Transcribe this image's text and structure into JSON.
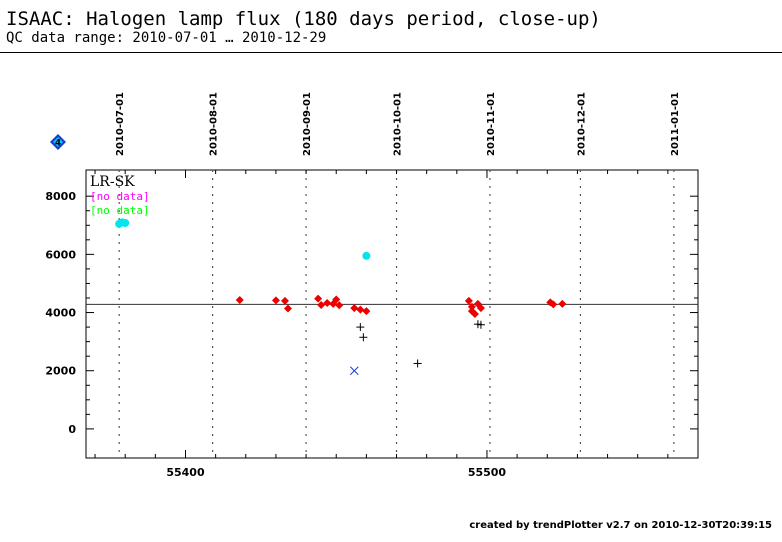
{
  "header": {
    "title": "ISAAC: Halogen lamp flux (180 days period, close-up)",
    "subtitle": "QC data range: 2010-07-01 … 2010-12-29"
  },
  "footer": {
    "credit": "created by trendPlotter v2.7 on 2010-12-30T20:39:15"
  },
  "badge": {
    "label": "4",
    "color": "#1a3ccc",
    "fill": "#00c8ff"
  },
  "chart_data": {
    "type": "scatter",
    "title": "ISAAC: Halogen lamp flux (180 days period, close-up)",
    "subtitle": "QC data range: 2010-07-01 … 2010-12-29",
    "xlabel": "",
    "ylabel": "",
    "xlim": [
      55367,
      55570
    ],
    "ylim": [
      -1000,
      8900
    ],
    "x_ticks_major": [
      55400,
      55500
    ],
    "y_ticks_major": [
      0,
      2000,
      4000,
      6000,
      8000
    ],
    "top_axis_dates": [
      {
        "label": "2010-07-01",
        "x": 55378
      },
      {
        "label": "2010-08-01",
        "x": 55409
      },
      {
        "label": "2010-09-01",
        "x": 55440
      },
      {
        "label": "2010-10-01",
        "x": 55470
      },
      {
        "label": "2010-11-01",
        "x": 55501
      },
      {
        "label": "2010-12-01",
        "x": 55531
      },
      {
        "label": "2011-01-01",
        "x": 55562
      }
    ],
    "reference_line": 4280,
    "legend": {
      "position": "top-left",
      "items": [
        {
          "label": "LR-SK",
          "color": "#000000"
        },
        {
          "label": "[no data]",
          "color": "#ff00ff"
        },
        {
          "label": "[no data]",
          "color": "#00ff00"
        }
      ]
    },
    "grid": false,
    "series": [
      {
        "marker": "diamond",
        "color": "#ee0000",
        "points": [
          [
            55418,
            4430
          ],
          [
            55430,
            4420
          ],
          [
            55433,
            4400
          ],
          [
            55434,
            4140
          ],
          [
            55444,
            4480
          ],
          [
            55445,
            4260
          ],
          [
            55447,
            4330
          ],
          [
            55449,
            4300
          ],
          [
            55450,
            4450
          ],
          [
            55451,
            4250
          ],
          [
            55456,
            4150
          ],
          [
            55458,
            4100
          ],
          [
            55460,
            4050
          ],
          [
            55494,
            4400
          ],
          [
            55495,
            4200
          ],
          [
            55495,
            4050
          ],
          [
            55496,
            3950
          ],
          [
            55497,
            4300
          ],
          [
            55498,
            4150
          ],
          [
            55521,
            4350
          ],
          [
            55522,
            4280
          ],
          [
            55525,
            4300
          ]
        ]
      },
      {
        "marker": "circle",
        "color": "#00e5ee",
        "points": [
          [
            55378,
            7050
          ],
          [
            55379,
            7100
          ],
          [
            55380,
            7080
          ],
          [
            55460,
            5950
          ]
        ]
      },
      {
        "marker": "plus",
        "color": "#000000",
        "points": [
          [
            55458,
            3500
          ],
          [
            55459,
            3150
          ],
          [
            55477,
            2250
          ],
          [
            55497,
            3600
          ],
          [
            55498,
            3580
          ]
        ]
      },
      {
        "marker": "x",
        "color": "#1a3ccc",
        "points": [
          [
            55456,
            2000
          ]
        ]
      }
    ]
  }
}
